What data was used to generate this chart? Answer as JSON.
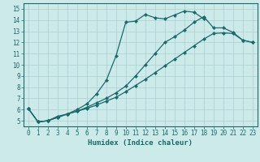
{
  "xlabel": "Humidex (Indice chaleur)",
  "ylabel": "",
  "xlim": [
    -0.5,
    23.5
  ],
  "ylim": [
    4.5,
    15.5
  ],
  "xticks": [
    0,
    1,
    2,
    3,
    4,
    5,
    6,
    7,
    8,
    9,
    10,
    11,
    12,
    13,
    14,
    15,
    16,
    17,
    18,
    19,
    20,
    21,
    22,
    23
  ],
  "yticks": [
    5,
    6,
    7,
    8,
    9,
    10,
    11,
    12,
    13,
    14,
    15
  ],
  "background_color": "#cdeaea",
  "grid_color": "#aad0d0",
  "line_color": "#1a6b6b",
  "line1_x": [
    0,
    1,
    2,
    3,
    4,
    5,
    6,
    7,
    8,
    9,
    10,
    11,
    12,
    13,
    14,
    15,
    16,
    17,
    18
  ],
  "line1_y": [
    6.1,
    4.9,
    5.0,
    5.4,
    5.6,
    6.0,
    6.5,
    7.4,
    8.6,
    10.8,
    13.8,
    13.9,
    14.5,
    14.2,
    14.1,
    14.45,
    14.8,
    14.7,
    14.1
  ],
  "line2_x": [
    0,
    1,
    2,
    3,
    4,
    5,
    6,
    7,
    8,
    9,
    10,
    11,
    12,
    13,
    14,
    15,
    16,
    17,
    18,
    19,
    20,
    21,
    22,
    23
  ],
  "line2_y": [
    6.1,
    4.9,
    5.0,
    5.3,
    5.6,
    5.85,
    6.2,
    6.6,
    7.0,
    7.5,
    8.1,
    9.0,
    10.0,
    11.0,
    12.0,
    12.5,
    13.1,
    13.8,
    14.3,
    13.3,
    13.3,
    12.9,
    12.2,
    12.0
  ],
  "line3_x": [
    0,
    1,
    2,
    3,
    4,
    5,
    6,
    7,
    8,
    9,
    10,
    11,
    12,
    13,
    14,
    15,
    16,
    17,
    18,
    19,
    20,
    21,
    22,
    23
  ],
  "line3_y": [
    6.1,
    4.9,
    5.0,
    5.3,
    5.6,
    5.85,
    6.1,
    6.4,
    6.75,
    7.1,
    7.6,
    8.15,
    8.7,
    9.3,
    9.9,
    10.5,
    11.1,
    11.7,
    12.3,
    12.8,
    12.85,
    12.8,
    12.2,
    12.0
  ]
}
